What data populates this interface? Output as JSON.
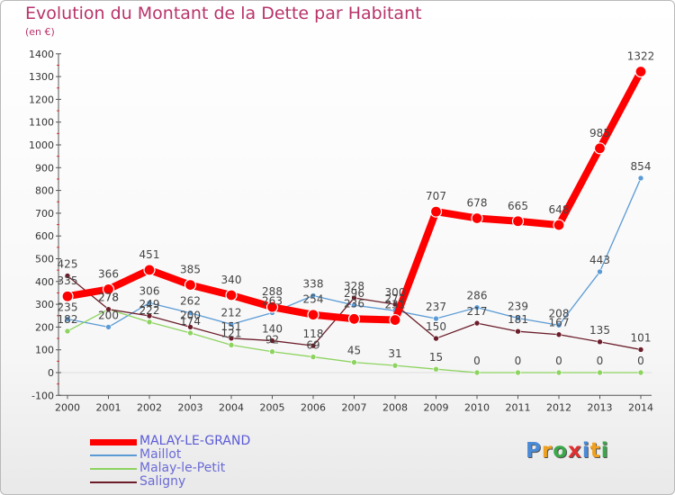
{
  "chart_data": {
    "type": "line",
    "title": "Evolution du Montant de la Dette par Habitant",
    "subtitle": "(en €)",
    "x": [
      "2000",
      "2001",
      "2002",
      "2003",
      "2004",
      "2005",
      "2006",
      "2007",
      "2008",
      "2009",
      "2010",
      "2011",
      "2012",
      "2013",
      "2014"
    ],
    "ylim": [
      -100,
      1400
    ],
    "yticks": [
      -100,
      0,
      100,
      200,
      300,
      400,
      500,
      600,
      700,
      800,
      900,
      1000,
      1100,
      1200,
      1300,
      1400
    ],
    "grid": false,
    "legend_position": "bottom-left",
    "series": [
      {
        "name": "MALAY-LE-GRAND",
        "color": "#ff0000",
        "values": [
          335,
          366,
          451,
          385,
          340,
          288,
          254,
          236,
          231,
          707,
          678,
          665,
          648,
          985,
          1322
        ]
      },
      {
        "name": "Maillot",
        "color": "#5b9bd5",
        "values": [
          235,
          200,
          306,
          262,
          212,
          263,
          338,
          296,
          272,
          237,
          286,
          239,
          208,
          443,
          854
        ]
      },
      {
        "name": "Malay-le-Petit",
        "color": "#8dd35f",
        "values": [
          182,
          278,
          222,
          174,
          121,
          92,
          69,
          45,
          31,
          15,
          0,
          0,
          0,
          0,
          0
        ]
      },
      {
        "name": "Saligny",
        "color": "#6b1e2a",
        "values": [
          425,
          278,
          249,
          200,
          151,
          140,
          118,
          328,
          300,
          150,
          217,
          181,
          167,
          135,
          101
        ]
      }
    ],
    "data_labels": [
      {
        "series": 0,
        "labels": [
          "335",
          "366",
          "451",
          "385",
          "340",
          "288",
          "254",
          "236",
          "231",
          "707",
          "678",
          "665",
          "648",
          "985",
          "1322"
        ]
      },
      {
        "series": 1,
        "labels": [
          "235",
          "200",
          "306",
          "262",
          "212",
          "263",
          "338",
          "296",
          "272",
          "237",
          "286",
          "239",
          "208",
          "443",
          "854"
        ]
      },
      {
        "series": 2,
        "labels": [
          "182",
          "278",
          "222",
          "174",
          "121",
          "92",
          "69",
          "45",
          "31",
          "15",
          "0",
          "0",
          "0",
          "0",
          "0"
        ]
      },
      {
        "series": 3,
        "labels": [
          "425",
          "278",
          "249",
          "200",
          "151",
          "140",
          "118",
          "328",
          "300",
          "150",
          "217",
          "181",
          "167",
          "135",
          "101"
        ]
      }
    ]
  },
  "logo": {
    "text": "Proxiti",
    "letters": [
      "P",
      "r",
      "o",
      "x",
      "i",
      "t",
      "i"
    ],
    "colors": [
      "#4a8ad6",
      "#f0a020",
      "#3aa84a",
      "#e23030",
      "#4a8ad6",
      "#f0a020",
      "#3aa84a"
    ]
  }
}
